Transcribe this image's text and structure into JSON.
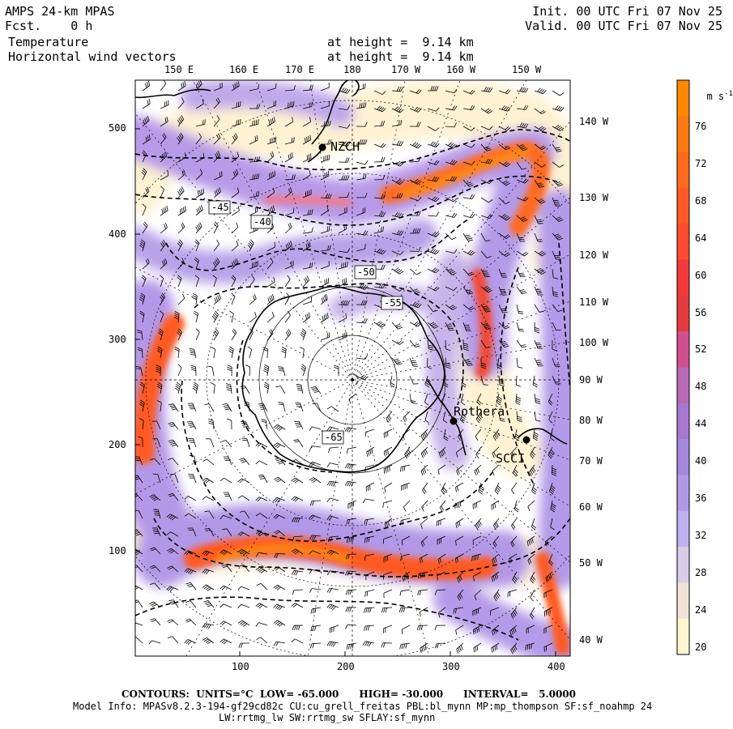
{
  "header": {
    "model": "AMPS 24-km MPAS",
    "fcst": "Fcst.    0 h",
    "init": "Init. 00 UTC Fri 07 Nov 25",
    "valid": "Valid. 00 UTC Fri 07 Nov 25",
    "field1": "Temperature",
    "field2": "Horizontal wind vectors",
    "height1": "at height =  9.14 km",
    "height2": "at height =  9.14 km"
  },
  "top_longitudes": [
    "150 E",
    "160 E",
    "170 E",
    "180",
    "170 W",
    "160 W",
    "150 W"
  ],
  "right_longitudes": [
    "140 W",
    "130 W",
    "120 W",
    "110 W",
    "100 W",
    "90 W",
    "80 W",
    "70 W",
    "60 W",
    "50 W",
    "40 W"
  ],
  "y_ticks": [
    "500",
    "400",
    "300",
    "200",
    "100"
  ],
  "x_ticks": [
    "100",
    "200",
    "300",
    "400"
  ],
  "contour_labels": [
    "-45",
    "-40",
    "-50",
    "-55",
    "-65"
  ],
  "stations": [
    "NZCH",
    "Rothera",
    "SCCI"
  ],
  "colorbar": {
    "unit": "m s",
    "unit_exp": "-1",
    "labels": [
      "76",
      "72",
      "68",
      "64",
      "60",
      "56",
      "52",
      "48",
      "44",
      "40",
      "36",
      "32",
      "28",
      "24",
      "20"
    ],
    "colors": [
      "#ff8800",
      "#ff7a10",
      "#ff6a1c",
      "#ff5a28",
      "#ff4b30",
      "#f43a38",
      "#e53c40",
      "#d05090",
      "#b86ab8",
      "#a878d0",
      "#a488e0",
      "#b09ae8",
      "#c0b0f0",
      "#d8cce8",
      "#f0e4d8",
      "#fff6d0"
    ]
  },
  "footer": {
    "line1": "CONTOURS:  UNITS=°C  LOW= -65.000      HIGH= -30.000      INTERVAL=   5.0000",
    "line2": "Model Info: MPASv8.2.3-194-gf29cd82c CU:cu_grell_freitas PBL:bl_mynn MP:mp_thompson SF:sf_noahmp 24",
    "line3": "LW:rrtmg_lw SW:rrtmg_sw SFLAY:sf_mynn"
  }
}
